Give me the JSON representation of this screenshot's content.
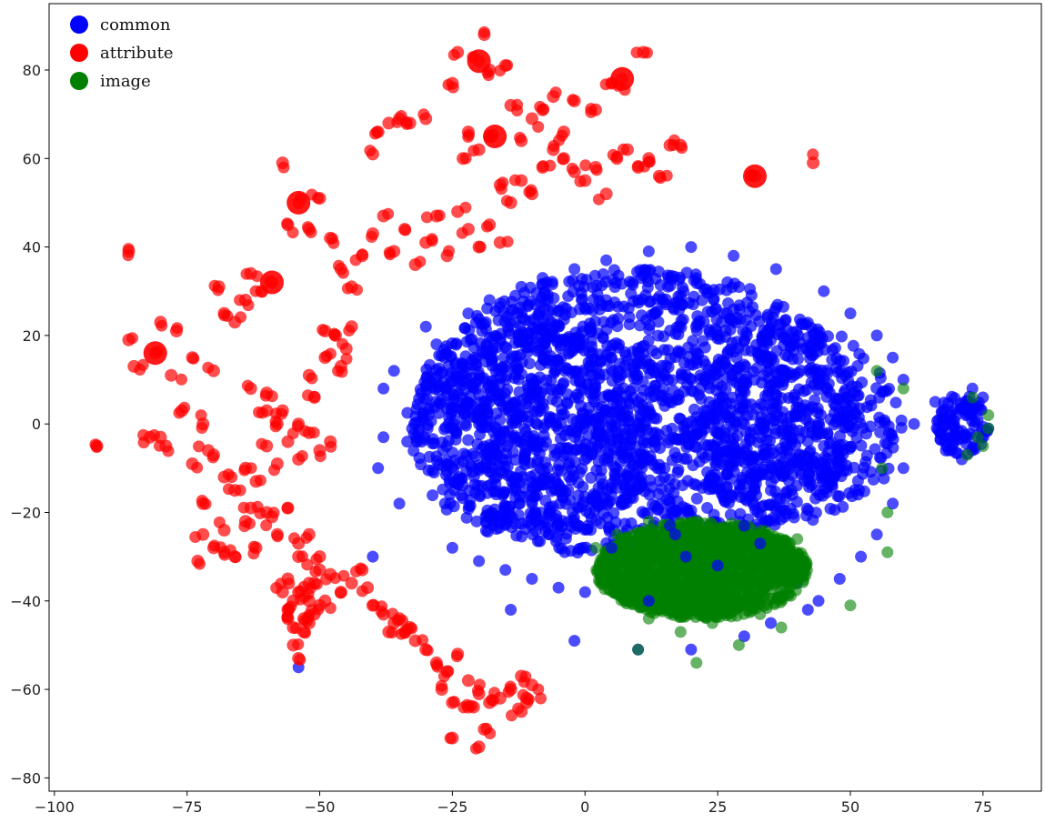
{
  "chart_data": {
    "type": "scatter",
    "title": "",
    "xlabel": "",
    "ylabel": "",
    "xlim": [
      -101,
      86
    ],
    "ylim": [
      -83,
      95
    ],
    "x_ticks": [
      -100,
      -75,
      -50,
      -25,
      0,
      25,
      50,
      75
    ],
    "y_ticks": [
      -80,
      -60,
      -40,
      -20,
      0,
      20,
      40,
      60,
      80
    ],
    "x_tick_labels": [
      "−100",
      "−75",
      "−50",
      "−25",
      "0",
      "25",
      "50",
      "75"
    ],
    "y_tick_labels": [
      "−80",
      "−60",
      "−40",
      "−20",
      "0",
      "20",
      "40",
      "60",
      "80"
    ],
    "grid": false,
    "legend_position": "top-left",
    "series": [
      {
        "name": "common",
        "color": "#0000ff",
        "opacity": 0.7,
        "approx_point_count": 2400,
        "points": [
          [
            -38,
            8
          ],
          [
            -38,
            -3
          ],
          [
            -39,
            -10
          ],
          [
            -36,
            12
          ],
          [
            -35,
            -18
          ],
          [
            -30,
            22
          ],
          [
            -28,
            18
          ],
          [
            -25,
            -28
          ],
          [
            -22,
            25
          ],
          [
            -20,
            -31
          ],
          [
            -18,
            28
          ],
          [
            -15,
            -33
          ],
          [
            -12,
            31
          ],
          [
            -10,
            -35
          ],
          [
            -8,
            33
          ],
          [
            -5,
            -37
          ],
          [
            -2,
            35
          ],
          [
            0,
            -38
          ],
          [
            4,
            37
          ],
          [
            8,
            -40
          ],
          [
            12,
            39
          ],
          [
            16,
            -41
          ],
          [
            20,
            40
          ],
          [
            24,
            -42
          ],
          [
            28,
            38
          ],
          [
            32,
            -40
          ],
          [
            36,
            35
          ],
          [
            40,
            -36
          ],
          [
            45,
            30
          ],
          [
            50,
            25
          ],
          [
            55,
            20
          ],
          [
            58,
            15
          ],
          [
            60,
            10
          ],
          [
            62,
            0
          ],
          [
            60,
            -10
          ],
          [
            58,
            -18
          ],
          [
            55,
            -25
          ],
          [
            52,
            -30
          ],
          [
            48,
            -35
          ],
          [
            44,
            -40
          ],
          [
            70,
            2
          ],
          [
            72,
            -3
          ],
          [
            74,
            4
          ],
          [
            76,
            -1
          ],
          [
            73,
            8
          ],
          [
            68,
            -6
          ],
          [
            66,
            5
          ],
          [
            71,
            -8
          ],
          [
            75,
            6
          ],
          [
            67,
            -2
          ],
          [
            -40,
            -30
          ],
          [
            -54,
            -55
          ],
          [
            -14,
            -42
          ],
          [
            -2,
            -49
          ],
          [
            10,
            -51
          ],
          [
            20,
            -51
          ],
          [
            30,
            -48
          ],
          [
            35,
            -45
          ],
          [
            42,
            -42
          ],
          [
            5,
            -30
          ],
          [
            16,
            -23
          ],
          [
            18,
            -25
          ],
          [
            30,
            -23
          ],
          [
            33,
            -27
          ],
          [
            25,
            -32
          ],
          [
            0,
            0
          ],
          [
            10,
            5
          ],
          [
            20,
            10
          ],
          [
            -10,
            -5
          ],
          [
            -20,
            0
          ],
          [
            30,
            0
          ],
          [
            40,
            5
          ],
          [
            15,
            -10
          ],
          [
            5,
            15
          ],
          [
            -15,
            10
          ],
          [
            25,
            20
          ],
          [
            35,
            -15
          ],
          [
            -5,
            22
          ],
          [
            45,
            -5
          ],
          [
            10,
            28
          ]
        ]
      },
      {
        "name": "attribute",
        "color": "#ff0000",
        "opacity": 0.7,
        "points": [
          [
            -92,
            -5
          ],
          [
            -86,
            39
          ],
          [
            -86,
            19
          ],
          [
            -85,
            13
          ],
          [
            -81,
            16
          ],
          [
            -80,
            -3
          ],
          [
            -80,
            23
          ],
          [
            -78,
            11
          ],
          [
            -77,
            21
          ],
          [
            -76,
            3
          ],
          [
            -74,
            15
          ],
          [
            -72,
            0
          ],
          [
            -71,
            -6
          ],
          [
            -70,
            12
          ],
          [
            -69,
            31
          ],
          [
            -68,
            25
          ],
          [
            -66,
            23
          ],
          [
            -64,
            28
          ],
          [
            -63,
            34
          ],
          [
            -61,
            30
          ],
          [
            -59,
            32
          ],
          [
            -57,
            59
          ],
          [
            -56,
            45
          ],
          [
            -54,
            50
          ],
          [
            -52,
            44
          ],
          [
            -50,
            51
          ],
          [
            -48,
            42
          ],
          [
            -46,
            35
          ],
          [
            -44,
            31
          ],
          [
            -42,
            38
          ],
          [
            -40,
            43
          ],
          [
            -38,
            47
          ],
          [
            -36,
            39
          ],
          [
            -34,
            44
          ],
          [
            -32,
            36
          ],
          [
            -30,
            41
          ],
          [
            -28,
            47
          ],
          [
            -26,
            38
          ],
          [
            -24,
            48
          ],
          [
            -22,
            44
          ],
          [
            -20,
            40
          ],
          [
            -18,
            45
          ],
          [
            -16,
            41
          ],
          [
            -14,
            50
          ],
          [
            -12,
            55
          ],
          [
            -10,
            52
          ],
          [
            -8,
            58
          ],
          [
            -6,
            62
          ],
          [
            -4,
            60
          ],
          [
            -2,
            57
          ],
          [
            0,
            55
          ],
          [
            2,
            58
          ],
          [
            4,
            52
          ],
          [
            6,
            60
          ],
          [
            8,
            62
          ],
          [
            10,
            58
          ],
          [
            12,
            60
          ],
          [
            14,
            56
          ],
          [
            16,
            63
          ],
          [
            18,
            63
          ],
          [
            32,
            56
          ],
          [
            43,
            59
          ],
          [
            -40,
            61
          ],
          [
            -39,
            66
          ],
          [
            -37,
            68
          ],
          [
            -35,
            69
          ],
          [
            -33,
            68
          ],
          [
            -30,
            69
          ],
          [
            -25,
            77
          ],
          [
            -24,
            84
          ],
          [
            -20,
            82
          ],
          [
            -19,
            88
          ],
          [
            -18,
            80
          ],
          [
            -15,
            81
          ],
          [
            -14,
            72
          ],
          [
            -12,
            64
          ],
          [
            -10,
            69
          ],
          [
            -8,
            71
          ],
          [
            -6,
            74
          ],
          [
            -4,
            66
          ],
          [
            -2,
            73
          ],
          [
            2,
            71
          ],
          [
            5,
            77
          ],
          [
            7,
            78
          ],
          [
            11,
            84
          ],
          [
            -22,
            66
          ],
          [
            -20,
            62
          ],
          [
            -18,
            65
          ],
          [
            -16,
            54
          ],
          [
            -23,
            60
          ],
          [
            -82,
            -3
          ],
          [
            -79,
            -5
          ],
          [
            -74,
            -9
          ],
          [
            -72,
            -18
          ],
          [
            -70,
            -7
          ],
          [
            -68,
            -12
          ],
          [
            -66,
            -15
          ],
          [
            -64,
            -10
          ],
          [
            -62,
            -13
          ],
          [
            -60,
            -5
          ],
          [
            -58,
            -9
          ],
          [
            -56,
            -4
          ],
          [
            -54,
            -8
          ],
          [
            -52,
            -2
          ],
          [
            -50,
            -6
          ],
          [
            -48,
            -4
          ],
          [
            -60,
            7
          ],
          [
            -63,
            8
          ],
          [
            -57,
            3
          ],
          [
            -54,
            0
          ],
          [
            -51,
            6
          ],
          [
            -49,
            15
          ],
          [
            -47,
            20
          ],
          [
            -45,
            17
          ],
          [
            -46,
            13
          ],
          [
            -44,
            22
          ],
          [
            -49,
            21
          ],
          [
            -52,
            11
          ],
          [
            -58,
            0
          ],
          [
            -60,
            3
          ],
          [
            -72,
            -25
          ],
          [
            -70,
            -28
          ],
          [
            -68,
            -24
          ],
          [
            -66,
            -30
          ],
          [
            -64,
            -22
          ],
          [
            -62,
            -28
          ],
          [
            -60,
            -20
          ],
          [
            -58,
            -25
          ],
          [
            -56,
            -19
          ],
          [
            -54,
            -27
          ],
          [
            -52,
            -25
          ],
          [
            -50,
            -30
          ],
          [
            -48,
            -34
          ],
          [
            -46,
            -38
          ],
          [
            -44,
            -36
          ],
          [
            -42,
            -33
          ],
          [
            -73,
            -31
          ],
          [
            -68,
            -29
          ],
          [
            -63,
            -19
          ],
          [
            -59,
            -21
          ],
          [
            -57,
            -38
          ],
          [
            -56,
            -42
          ],
          [
            -55,
            -46
          ],
          [
            -55,
            -50
          ],
          [
            -54,
            -53
          ],
          [
            -53,
            -44
          ],
          [
            -52,
            -40
          ],
          [
            -51,
            -36
          ],
          [
            -50,
            -33
          ],
          [
            -49,
            -40
          ],
          [
            -55,
            -40
          ],
          [
            -56,
            -35
          ],
          [
            -54,
            -30
          ],
          [
            -53,
            -47
          ],
          [
            -52,
            -45
          ],
          [
            -51,
            -43
          ],
          [
            -50,
            -41
          ],
          [
            -52,
            -36
          ],
          [
            -54,
            -38
          ],
          [
            -56,
            -44
          ],
          [
            -41,
            -37
          ],
          [
            -40,
            -41
          ],
          [
            -38,
            -43
          ],
          [
            -36,
            -45
          ],
          [
            -34,
            -47
          ],
          [
            -32,
            -49
          ],
          [
            -30,
            -51
          ],
          [
            -28,
            -54
          ],
          [
            -26,
            -56
          ],
          [
            -24,
            -52
          ],
          [
            -22,
            -58
          ],
          [
            -21,
            -64
          ],
          [
            -20,
            -61
          ],
          [
            -19,
            -69
          ],
          [
            -18,
            -63
          ],
          [
            -16,
            -62
          ],
          [
            -14,
            -60
          ],
          [
            -12,
            -57
          ],
          [
            -11,
            -62
          ],
          [
            -10,
            -59
          ],
          [
            -37,
            -47
          ],
          [
            -35,
            -44
          ],
          [
            -33,
            -46
          ],
          [
            -27,
            -60
          ],
          [
            -25,
            -63
          ],
          [
            -25,
            -71
          ],
          [
            -20,
            -73
          ],
          [
            -22,
            -64
          ],
          [
            -12,
            -65
          ],
          [
            -11,
            -63
          ]
        ]
      },
      {
        "name": "image",
        "color": "#008000",
        "opacity": 0.6,
        "approx_point_count": 1500,
        "points": [
          [
            2,
            -28
          ],
          [
            4,
            -33
          ],
          [
            6,
            -25
          ],
          [
            8,
            -36
          ],
          [
            10,
            -30
          ],
          [
            12,
            -22
          ],
          [
            14,
            -38
          ],
          [
            16,
            -33
          ],
          [
            18,
            -26
          ],
          [
            20,
            -40
          ],
          [
            22,
            -30
          ],
          [
            24,
            -35
          ],
          [
            26,
            -24
          ],
          [
            28,
            -38
          ],
          [
            30,
            -28
          ],
          [
            32,
            -33
          ],
          [
            34,
            -25
          ],
          [
            36,
            -36
          ],
          [
            38,
            -30
          ],
          [
            40,
            -26
          ],
          [
            12,
            -44
          ],
          [
            18,
            -47
          ],
          [
            24,
            -45
          ],
          [
            29,
            -50
          ],
          [
            33,
            -43
          ],
          [
            37,
            -46
          ],
          [
            21,
            -54
          ],
          [
            10,
            -51
          ],
          [
            50,
            -41
          ],
          [
            57,
            -29
          ],
          [
            74,
            -3
          ],
          [
            76,
            -1
          ],
          [
            73,
            6
          ],
          [
            75,
            -5
          ],
          [
            76,
            2
          ],
          [
            72,
            -7
          ],
          [
            56,
            -10
          ],
          [
            57,
            -20
          ],
          [
            60,
            8
          ],
          [
            55,
            12
          ]
        ]
      }
    ]
  }
}
